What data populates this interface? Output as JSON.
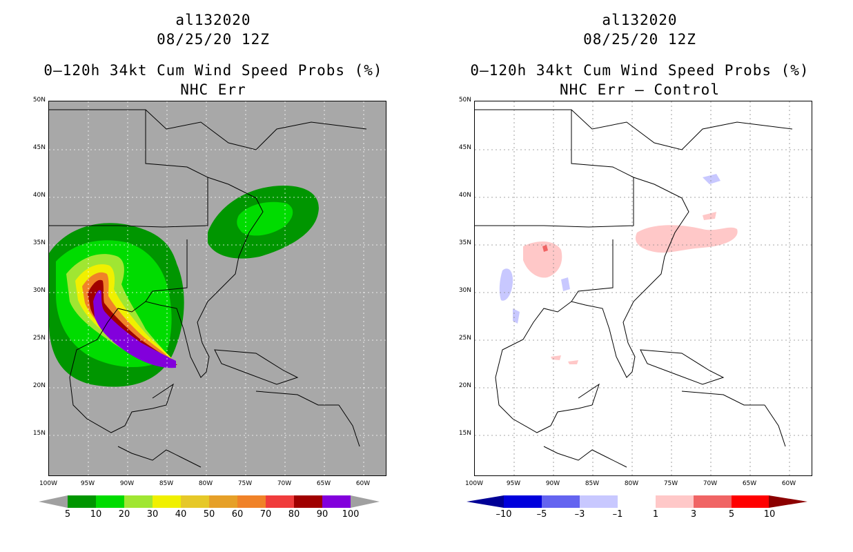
{
  "left": {
    "title1": "al132020",
    "title2": "08/25/20 12Z",
    "title3": "0–120h 34kt Cum Wind Speed Probs (%)",
    "title4": "NHC Err",
    "lat_labels": [
      "50N",
      "45N",
      "40N",
      "35N",
      "30N",
      "25N",
      "20N",
      "15N"
    ],
    "lon_labels": [
      "100W",
      "95W",
      "90W",
      "85W",
      "80W",
      "75W",
      "70W",
      "65W",
      "60W"
    ],
    "colorbar": {
      "labels": [
        "5",
        "10",
        "20",
        "30",
        "40",
        "50",
        "60",
        "70",
        "80",
        "90",
        "100"
      ],
      "colors": [
        "#009600",
        "#00dc00",
        "#a0e632",
        "#f0f000",
        "#e6c828",
        "#e6a028",
        "#f08228",
        "#f03c3c",
        "#a00000",
        "#8200dc"
      ],
      "end_color": "#a0a0a0"
    },
    "background_color": "#a8a8a8"
  },
  "right": {
    "title1": "al132020",
    "title2": "08/25/20 12Z",
    "title3": "0–120h 34kt Cum Wind Speed Probs (%)",
    "title4": "NHC Err – Control",
    "lat_labels": [
      "50N",
      "45N",
      "40N",
      "35N",
      "30N",
      "25N",
      "20N",
      "15N"
    ],
    "lon_labels": [
      "100W",
      "95W",
      "90W",
      "85W",
      "80W",
      "75W",
      "70W",
      "65W",
      "60W"
    ],
    "colorbar": {
      "labels": [
        "–10",
        "–5",
        "–3",
        "–1",
        "1",
        "3",
        "5",
        "10"
      ],
      "colors": [
        "#0000dc",
        "#6464f0",
        "#c8c8ff",
        "#ffffff",
        "#ffc8c8",
        "#f06464",
        "#ff0000"
      ],
      "end_low_color": "#000096",
      "end_high_color": "#8c0000"
    },
    "background_color": "#ffffff"
  }
}
